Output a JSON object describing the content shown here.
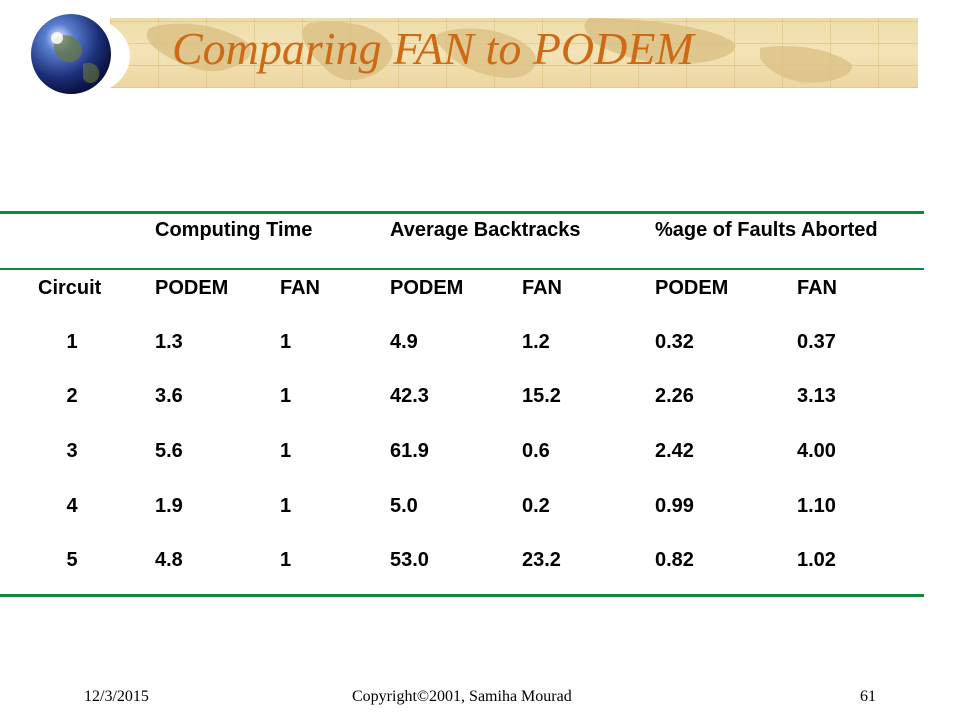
{
  "slide": {
    "title": "Comparing FAN to PODEM"
  },
  "table": {
    "group_headers": [
      "Computing Time",
      "Average Backtracks",
      "%age of Faults Aborted"
    ],
    "sub_headers": [
      "Circuit",
      "PODEM",
      "FAN",
      "PODEM",
      "FAN",
      "PODEM",
      "FAN"
    ],
    "rows": [
      [
        "1",
        "1.3",
        "1",
        "4.9",
        "1.2",
        "0.32",
        "0.37"
      ],
      [
        "2",
        "3.6",
        "1",
        "42.3",
        "15.2",
        "2.26",
        "3.13"
      ],
      [
        "3",
        "5.6",
        "1",
        "61.9",
        "0.6",
        "2.42",
        "4.00"
      ],
      [
        "4",
        "1.9",
        "1",
        "5.0",
        "0.2",
        "0.99",
        "1.10"
      ],
      [
        "5",
        "4.8",
        "1",
        "53.0",
        "23.2",
        "0.82",
        "1.02"
      ]
    ]
  },
  "footer": {
    "date": "12/3/2015",
    "copyright": "Copyright©2001, Samiha Mourad",
    "page": "61"
  },
  "colors": {
    "title": "#cc6a16",
    "rule": "#0f8a3a"
  }
}
